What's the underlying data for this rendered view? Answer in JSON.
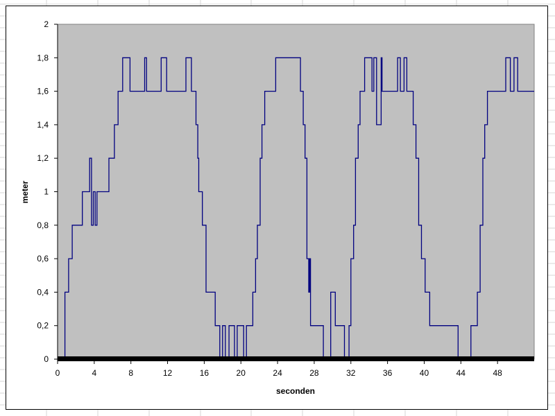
{
  "chart_data": {
    "type": "line",
    "title": "",
    "xlabel": "seconden",
    "ylabel": "meter",
    "xlim": [
      0,
      52
    ],
    "ylim": [
      0,
      2
    ],
    "x_ticks": [
      0,
      4,
      8,
      12,
      16,
      20,
      24,
      28,
      32,
      36,
      40,
      44,
      48
    ],
    "y_ticks": [
      0,
      0.2,
      0.4,
      0.6,
      0.8,
      1,
      1.2,
      1.4,
      1.6,
      1.8,
      2
    ],
    "y_tick_labels": [
      "0",
      "0,2",
      "0,4",
      "0,6",
      "0,8",
      "1",
      "1,2",
      "1,4",
      "1,6",
      "1,8",
      "2"
    ],
    "grid": false,
    "legend": "none",
    "plot_background": "#c0c0c0",
    "series": [
      {
        "color": "#000080",
        "step": true,
        "points": [
          [
            0,
            0
          ],
          [
            0.8,
            0.4
          ],
          [
            1.2,
            0.6
          ],
          [
            1.6,
            0.8
          ],
          [
            2.7,
            1.0
          ],
          [
            3.5,
            1.2
          ],
          [
            3.7,
            0.8
          ],
          [
            3.9,
            1.0
          ],
          [
            4.1,
            0.8
          ],
          [
            4.3,
            1.0
          ],
          [
            5.6,
            1.2
          ],
          [
            6.2,
            1.4
          ],
          [
            6.6,
            1.6
          ],
          [
            7.1,
            1.8
          ],
          [
            7.9,
            1.6
          ],
          [
            9.5,
            1.8
          ],
          [
            9.7,
            1.6
          ],
          [
            11.3,
            1.8
          ],
          [
            11.9,
            1.6
          ],
          [
            14.0,
            1.8
          ],
          [
            14.6,
            1.6
          ],
          [
            15.1,
            1.4
          ],
          [
            15.3,
            1.2
          ],
          [
            15.4,
            1.0
          ],
          [
            15.8,
            0.8
          ],
          [
            16.2,
            0.4
          ],
          [
            17.2,
            0.2
          ],
          [
            17.7,
            0
          ],
          [
            18.0,
            0.2
          ],
          [
            18.3,
            0
          ],
          [
            18.7,
            0.2
          ],
          [
            19.3,
            0
          ],
          [
            19.6,
            0.2
          ],
          [
            20.3,
            0
          ],
          [
            20.6,
            0.2
          ],
          [
            21.3,
            0.4
          ],
          [
            21.6,
            0.6
          ],
          [
            21.8,
            0.8
          ],
          [
            22.1,
            1.2
          ],
          [
            22.3,
            1.4
          ],
          [
            22.6,
            1.6
          ],
          [
            23.8,
            1.8
          ],
          [
            26.5,
            1.6
          ],
          [
            26.8,
            1.4
          ],
          [
            27.0,
            1.2
          ],
          [
            27.2,
            0.6
          ],
          [
            27.4,
            0.4
          ],
          [
            27.5,
            0.6
          ],
          [
            27.6,
            0.2
          ],
          [
            29.0,
            0
          ],
          [
            29.8,
            0.4
          ],
          [
            30.3,
            0.2
          ],
          [
            31.3,
            0
          ],
          [
            31.8,
            0.2
          ],
          [
            32.0,
            0.6
          ],
          [
            32.3,
            0.8
          ],
          [
            32.5,
            1.2
          ],
          [
            32.8,
            1.4
          ],
          [
            33.0,
            1.6
          ],
          [
            33.5,
            1.8
          ],
          [
            34.3,
            1.6
          ],
          [
            34.5,
            1.8
          ],
          [
            34.8,
            1.4
          ],
          [
            35.3,
            1.8
          ],
          [
            35.4,
            1.6
          ],
          [
            37.1,
            1.8
          ],
          [
            37.4,
            1.6
          ],
          [
            37.8,
            1.8
          ],
          [
            38.1,
            1.6
          ],
          [
            38.8,
            1.4
          ],
          [
            39.1,
            1.2
          ],
          [
            39.4,
            0.8
          ],
          [
            39.7,
            0.6
          ],
          [
            40.1,
            0.4
          ],
          [
            40.6,
            0.2
          ],
          [
            43.7,
            0
          ],
          [
            45.1,
            0.2
          ],
          [
            45.8,
            0.4
          ],
          [
            46.1,
            0.8
          ],
          [
            46.4,
            1.2
          ],
          [
            46.6,
            1.4
          ],
          [
            46.9,
            1.6
          ],
          [
            48.9,
            1.8
          ],
          [
            49.4,
            1.6
          ],
          [
            49.8,
            1.8
          ],
          [
            50.2,
            1.6
          ],
          [
            52.0,
            1.6
          ]
        ]
      }
    ]
  }
}
